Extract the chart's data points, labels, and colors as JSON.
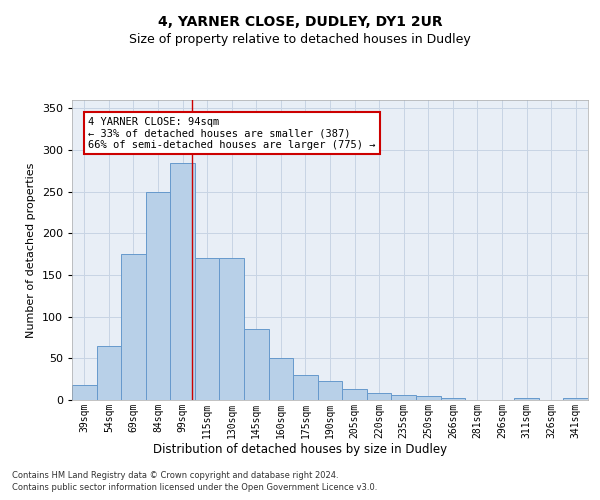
{
  "title1": "4, YARNER CLOSE, DUDLEY, DY1 2UR",
  "title2": "Size of property relative to detached houses in Dudley",
  "xlabel": "Distribution of detached houses by size in Dudley",
  "ylabel": "Number of detached properties",
  "categories": [
    "39sqm",
    "54sqm",
    "69sqm",
    "84sqm",
    "99sqm",
    "115sqm",
    "130sqm",
    "145sqm",
    "160sqm",
    "175sqm",
    "190sqm",
    "205sqm",
    "220sqm",
    "235sqm",
    "250sqm",
    "266sqm",
    "281sqm",
    "296sqm",
    "311sqm",
    "326sqm",
    "341sqm"
  ],
  "values": [
    18,
    65,
    175,
    250,
    285,
    170,
    170,
    85,
    51,
    30,
    23,
    13,
    8,
    6,
    5,
    2,
    0,
    0,
    2,
    0,
    2
  ],
  "bar_color": "#b8d0e8",
  "bar_edge_color": "#6699cc",
  "grid_color": "#c8d4e4",
  "bg_color": "#e8eef6",
  "red_line_x": 4.4,
  "annotation_text": "4 YARNER CLOSE: 94sqm\n← 33% of detached houses are smaller (387)\n66% of semi-detached houses are larger (775) →",
  "annotation_box_color": "#ffffff",
  "annotation_edge_color": "#cc0000",
  "footer1": "Contains HM Land Registry data © Crown copyright and database right 2024.",
  "footer2": "Contains public sector information licensed under the Open Government Licence v3.0.",
  "ylim": [
    0,
    360
  ],
  "yticks": [
    0,
    50,
    100,
    150,
    200,
    250,
    300,
    350
  ]
}
